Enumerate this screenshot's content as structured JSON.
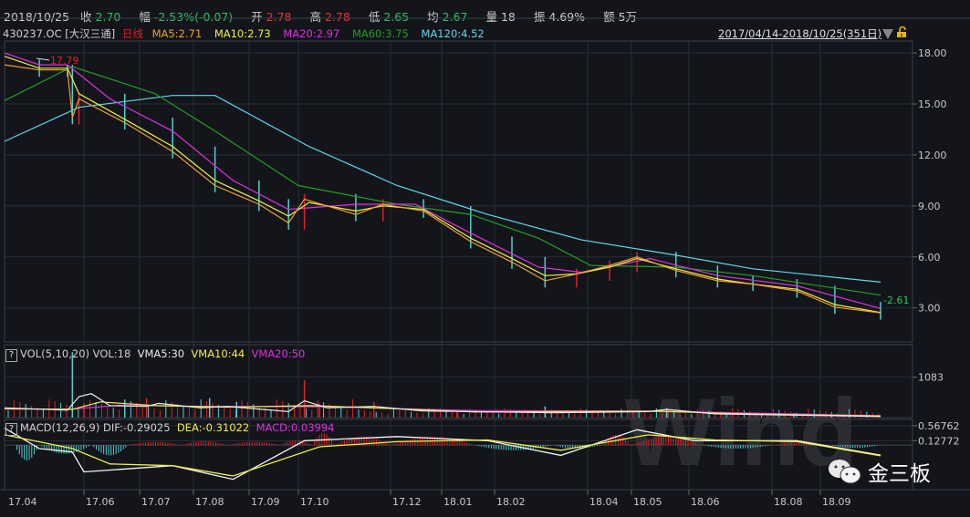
{
  "header": {
    "date": "2018/10/25",
    "close_label": "收",
    "close": "2.70",
    "change_label": "幅",
    "change": "-2.53%(-0.07)",
    "open_label": "开",
    "open": "2.78",
    "high_label": "高",
    "high": "2.78",
    "low_label": "低",
    "low": "2.65",
    "avg_label": "均",
    "avg": "2.67",
    "vol_label": "量",
    "vol": "18",
    "amp_label": "振",
    "amp": "4.69%",
    "amount_label": "额",
    "amount": "5万"
  },
  "ma_legend": {
    "code": "430237.OC [大汉三通]",
    "period": "日线",
    "ma5": "MA5:2.71",
    "ma10": "MA10:2.73",
    "ma20": "MA20:2.97",
    "ma60": "MA60:3.75",
    "ma120": "MA120:4.52"
  },
  "range_label": "2017/04/14-2018/10/25(351日)",
  "vol_legend": {
    "help": "?",
    "title": "VOL(5,10,20)",
    "vol": "VOL:18",
    "vma5": "VMA5:30",
    "vma10": "VMA10:44",
    "vma20": "VMA20:50"
  },
  "macd_legend": {
    "help": "?",
    "title": "MACD(12,26,9)",
    "dif": "DIF:-0.29025",
    "dea": "DEA:-0.31022",
    "macd": "MACD:0.03994"
  },
  "watermark": "Wind",
  "brand": "金三板",
  "colors": {
    "ma5": "#f0a030",
    "ma10": "#f0f040",
    "ma20": "#e030e0",
    "ma60": "#20a020",
    "ma120": "#60d8e8",
    "up": "#e02020",
    "down": "#50d0d0",
    "green_text": "#30c060",
    "red_text": "#f03030"
  },
  "chart_data": [
    {
      "type": "line",
      "panel": "price",
      "y_ticks": [
        "18.00",
        "15.00",
        "12.00",
        "9.00",
        "6.00",
        "3.00"
      ],
      "ylim": [
        1.0,
        18.7
      ],
      "x_ticks": [
        "17.04",
        "17.06",
        "17.07",
        "17.08",
        "17.09",
        "17.10",
        "17.12",
        "18.01",
        "18.02",
        "18.04",
        "18.05",
        "18.06",
        "18.08",
        "18.09"
      ],
      "annotations": {
        "high": "17.79",
        "last": "2.61"
      },
      "series": [
        {
          "name": "MA5",
          "key": "ma5",
          "points": [
            [
              "2017-04-14",
              17.3
            ],
            [
              "2017-05-05",
              17.0
            ],
            [
              "2017-05-22",
              17.0
            ],
            [
              "2017-05-25",
              14.2
            ],
            [
              "2017-05-29",
              15.3
            ],
            [
              "2017-06-23",
              13.9
            ],
            [
              "2017-07-20",
              12.2
            ],
            [
              "2017-08-13",
              10.2
            ],
            [
              "2017-09-07",
              9.1
            ],
            [
              "2017-09-25",
              8.0
            ],
            [
              "2017-10-05",
              9.4
            ],
            [
              "2017-11-08",
              8.5
            ],
            [
              "2017-11-26",
              9.1
            ],
            [
              "2017-12-21",
              8.7
            ],
            [
              "2018-01-18",
              6.9
            ],
            [
              "2018-02-12",
              5.7
            ],
            [
              "2018-03-05",
              4.6
            ],
            [
              "2018-03-25",
              5.0
            ],
            [
              "2018-04-16",
              5.5
            ],
            [
              "2018-05-04",
              6.0
            ],
            [
              "2018-05-25",
              5.2
            ],
            [
              "2018-06-22",
              4.6
            ],
            [
              "2018-07-18",
              4.4
            ],
            [
              "2018-08-17",
              4.0
            ],
            [
              "2018-09-14",
              3.05
            ],
            [
              "2018-10-25",
              2.71
            ]
          ]
        },
        {
          "name": "MA10",
          "key": "ma10",
          "points": [
            [
              "2017-04-14",
              17.8
            ],
            [
              "2017-05-05",
              17.1
            ],
            [
              "2017-05-22",
              17.1
            ],
            [
              "2017-05-29",
              15.6
            ],
            [
              "2017-06-23",
              14.1
            ],
            [
              "2017-07-20",
              12.5
            ],
            [
              "2017-08-13",
              10.5
            ],
            [
              "2017-09-07",
              9.3
            ],
            [
              "2017-09-25",
              8.4
            ],
            [
              "2017-10-08",
              9.2
            ],
            [
              "2017-11-08",
              8.7
            ],
            [
              "2017-11-26",
              9.0
            ],
            [
              "2017-12-21",
              8.8
            ],
            [
              "2018-01-18",
              7.1
            ],
            [
              "2018-02-12",
              5.9
            ],
            [
              "2018-03-05",
              4.9
            ],
            [
              "2018-03-25",
              5.0
            ],
            [
              "2018-04-16",
              5.4
            ],
            [
              "2018-05-04",
              5.9
            ],
            [
              "2018-05-25",
              5.3
            ],
            [
              "2018-06-22",
              4.7
            ],
            [
              "2018-07-18",
              4.4
            ],
            [
              "2018-08-17",
              4.1
            ],
            [
              "2018-09-14",
              3.2
            ],
            [
              "2018-10-25",
              2.73
            ]
          ]
        },
        {
          "name": "MA20",
          "key": "ma20",
          "points": [
            [
              "2017-04-14",
              18.0
            ],
            [
              "2017-05-05",
              17.3
            ],
            [
              "2017-05-22",
              17.3
            ],
            [
              "2017-06-15",
              15.3
            ],
            [
              "2017-07-20",
              13.4
            ],
            [
              "2017-08-23",
              10.5
            ],
            [
              "2017-09-25",
              8.8
            ],
            [
              "2017-11-08",
              9.1
            ],
            [
              "2017-12-16",
              9.1
            ],
            [
              "2018-01-18",
              7.4
            ],
            [
              "2018-03-01",
              5.4
            ],
            [
              "2018-03-28",
              5.1
            ],
            [
              "2018-05-11",
              5.9
            ],
            [
              "2018-06-22",
              4.9
            ],
            [
              "2018-08-17",
              4.3
            ],
            [
              "2018-10-25",
              2.97
            ]
          ]
        },
        {
          "name": "MA60",
          "key": "ma60",
          "points": [
            [
              "2017-04-14",
              15.2
            ],
            [
              "2017-05-25",
              17.2
            ],
            [
              "2017-07-10",
              15.6
            ],
            [
              "2017-08-13",
              13.4
            ],
            [
              "2017-10-01",
              10.2
            ],
            [
              "2017-12-05",
              9.1
            ],
            [
              "2018-01-18",
              8.5
            ],
            [
              "2018-03-01",
              7.1
            ],
            [
              "2018-04-03",
              5.5
            ],
            [
              "2018-05-25",
              5.4
            ],
            [
              "2018-07-18",
              4.9
            ],
            [
              "2018-10-25",
              3.75
            ]
          ]
        },
        {
          "name": "MA120",
          "key": "ma120",
          "points": [
            [
              "2017-04-14",
              12.8
            ],
            [
              "2017-05-29",
              14.8
            ],
            [
              "2017-07-20",
              15.5
            ],
            [
              "2017-08-13",
              15.5
            ],
            [
              "2017-10-08",
              12.5
            ],
            [
              "2017-12-05",
              10.2
            ],
            [
              "2018-01-28",
              8.5
            ],
            [
              "2018-03-28",
              7.0
            ],
            [
              "2018-05-25",
              6.1
            ],
            [
              "2018-07-18",
              5.3
            ],
            [
              "2018-10-25",
              4.52
            ]
          ]
        }
      ]
    },
    {
      "type": "bar",
      "panel": "volume",
      "y_ticks": [
        "1083"
      ],
      "ylim": [
        0,
        1950
      ],
      "bars": [
        [
          "2017-05-25",
          1750,
          "down"
        ],
        [
          "2017-06-01",
          380,
          "up"
        ],
        [
          "2017-06-23",
          480,
          "down"
        ],
        [
          "2017-07-05",
          520,
          "up"
        ],
        [
          "2017-08-10",
          520,
          "down"
        ],
        [
          "2017-08-25",
          420,
          "down"
        ],
        [
          "2017-10-05",
          1000,
          "up"
        ],
        [
          "2017-10-15",
          380,
          "up"
        ],
        [
          "2017-11-20",
          420,
          "up"
        ],
        [
          "2018-01-10",
          200,
          "up"
        ],
        [
          "2018-03-05",
          300,
          "down"
        ],
        [
          "2018-05-20",
          250,
          "down"
        ],
        [
          "2018-08-15",
          120,
          "down"
        ]
      ],
      "series": [
        {
          "name": "VMA5",
          "key": "vma5",
          "points": [
            [
              "2017-04-14",
              260
            ],
            [
              "2017-05-22",
              200
            ],
            [
              "2017-05-29",
              560
            ],
            [
              "2017-06-05",
              640
            ],
            [
              "2017-06-15",
              320
            ],
            [
              "2017-07-05",
              300
            ],
            [
              "2017-07-12",
              380
            ],
            [
              "2017-08-05",
              260
            ],
            [
              "2017-08-20",
              300
            ],
            [
              "2017-09-25",
              160
            ],
            [
              "2017-10-05",
              450
            ],
            [
              "2017-10-20",
              260
            ],
            [
              "2017-11-20",
              300
            ],
            [
              "2017-12-20",
              180
            ],
            [
              "2018-03-10",
              130
            ],
            [
              "2018-05-10",
              160
            ],
            [
              "2018-05-20",
              220
            ],
            [
              "2018-06-20",
              100
            ],
            [
              "2018-10-25",
              30
            ]
          ]
        },
        {
          "name": "VMA10",
          "key": "vma10",
          "points": [
            [
              "2017-04-14",
              240
            ],
            [
              "2017-05-25",
              220
            ],
            [
              "2017-06-10",
              420
            ],
            [
              "2017-07-10",
              320
            ],
            [
              "2017-08-20",
              280
            ],
            [
              "2017-10-10",
              320
            ],
            [
              "2017-11-20",
              260
            ],
            [
              "2018-01-20",
              150
            ],
            [
              "2018-05-15",
              170
            ],
            [
              "2018-07-10",
              100
            ],
            [
              "2018-10-25",
              44
            ]
          ]
        },
        {
          "name": "VMA20",
          "key": "vma20",
          "points": [
            [
              "2017-04-14",
              230
            ],
            [
              "2017-05-25",
              230
            ],
            [
              "2017-06-20",
              330
            ],
            [
              "2017-08-10",
              300
            ],
            [
              "2017-10-20",
              290
            ],
            [
              "2018-01-20",
              190
            ],
            [
              "2018-05-20",
              170
            ],
            [
              "2018-08-01",
              110
            ],
            [
              "2018-10-25",
              50
            ]
          ]
        }
      ]
    },
    {
      "type": "line",
      "panel": "macd",
      "y_ticks": [
        "0.56762",
        "0.12772"
      ],
      "ylim": [
        -1.3,
        0.75
      ],
      "histogram": [
        [
          "2017-04-20",
          -0.45
        ],
        [
          "2017-05-05",
          -0.25
        ],
        [
          "2017-06-05",
          -0.3
        ],
        [
          "2017-06-25",
          0.1
        ],
        [
          "2017-07-25",
          0.12
        ],
        [
          "2017-08-20",
          0.1
        ],
        [
          "2017-09-20",
          0.15
        ],
        [
          "2017-10-10",
          0.35
        ],
        [
          "2017-10-25",
          0.25
        ],
        [
          "2017-12-01",
          0.25
        ],
        [
          "2018-01-20",
          -0.15
        ],
        [
          "2018-03-10",
          -0.1
        ],
        [
          "2018-04-10",
          0.3
        ],
        [
          "2018-05-01",
          0.25
        ],
        [
          "2018-06-10",
          -0.1
        ],
        [
          "2018-08-01",
          0.08
        ],
        [
          "2018-09-10",
          -0.08
        ]
      ],
      "series": [
        {
          "name": "DIF",
          "key": "dif",
          "points": [
            [
              "2017-04-14",
              0.5
            ],
            [
              "2017-05-05",
              -0.1
            ],
            [
              "2017-05-25",
              -0.2
            ],
            [
              "2017-06-01",
              -0.78
            ],
            [
              "2017-07-20",
              -0.6
            ],
            [
              "2017-08-23",
              -1.0
            ],
            [
              "2017-10-05",
              0.13
            ],
            [
              "2017-12-05",
              0.25
            ],
            [
              "2018-01-28",
              0.13
            ],
            [
              "2018-03-15",
              -0.3
            ],
            [
              "2018-05-04",
              0.45
            ],
            [
              "2018-06-05",
              0.13
            ],
            [
              "2018-08-17",
              0.13
            ],
            [
              "2018-10-25",
              -0.29
            ]
          ]
        },
        {
          "name": "DEA",
          "key": "dea",
          "points": [
            [
              "2017-04-14",
              0.3
            ],
            [
              "2017-05-25",
              -0.1
            ],
            [
              "2017-06-15",
              -0.55
            ],
            [
              "2017-07-20",
              -0.6
            ],
            [
              "2017-08-23",
              -0.9
            ],
            [
              "2017-10-15",
              -0.05
            ],
            [
              "2017-12-05",
              0.1
            ],
            [
              "2018-01-28",
              0.15
            ],
            [
              "2018-03-15",
              -0.15
            ],
            [
              "2018-05-10",
              0.3
            ],
            [
              "2018-06-20",
              0.15
            ],
            [
              "2018-08-17",
              0.1
            ],
            [
              "2018-10-25",
              -0.31
            ]
          ]
        }
      ]
    }
  ]
}
